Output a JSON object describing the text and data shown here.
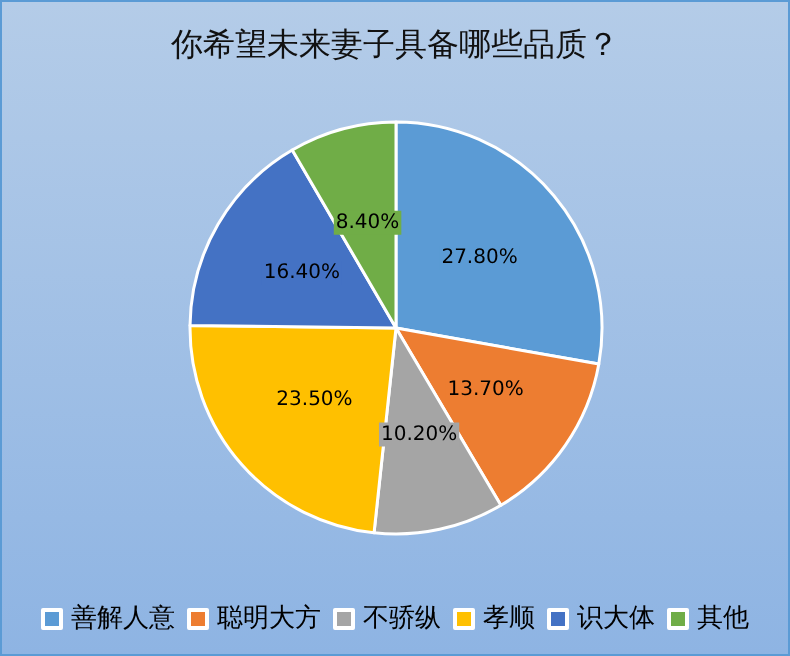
{
  "chart_data": {
    "type": "pie",
    "title": "你希望未来妻子具备哪些品质？",
    "categories": [
      "善解人意",
      "聪明大方",
      "不骄纵",
      "孝顺",
      "识大体",
      "其他"
    ],
    "values": [
      27.8,
      13.7,
      10.2,
      23.5,
      16.4,
      8.4
    ],
    "value_labels": [
      "27.80%",
      "13.70%",
      "10.20%",
      "23.50%",
      "16.40%",
      "8.40%"
    ],
    "colors": [
      "#5b9bd5",
      "#ed7d31",
      "#a5a5a5",
      "#ffc000",
      "#4472c4",
      "#70ad47"
    ],
    "legend": "bottom"
  }
}
